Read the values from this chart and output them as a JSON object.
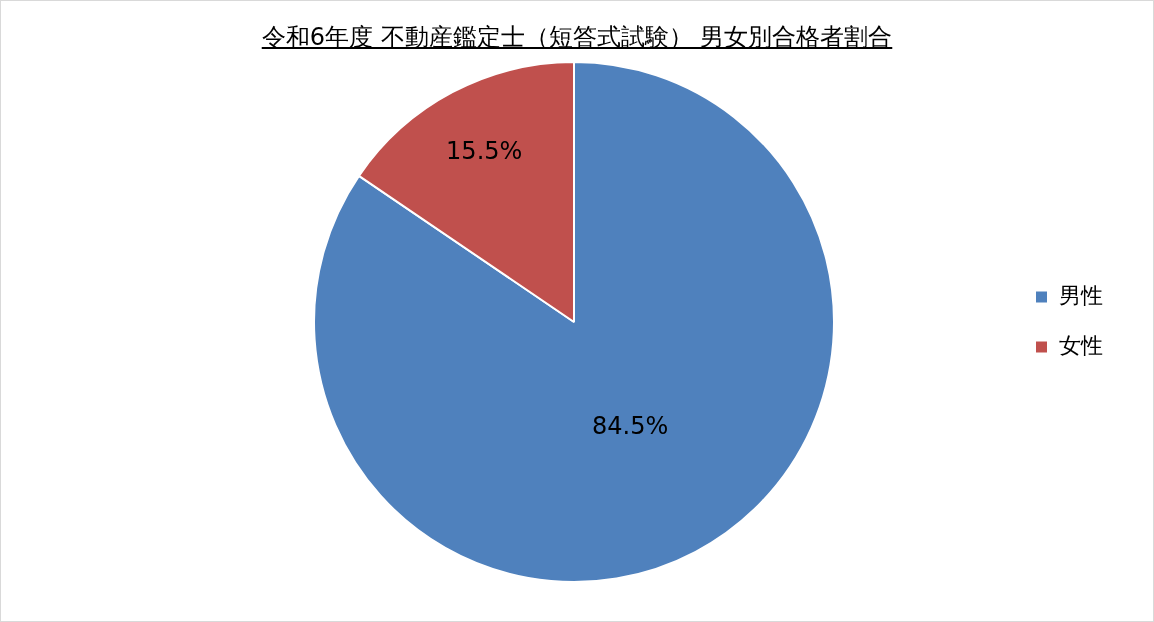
{
  "chart_data": {
    "type": "pie",
    "title": "令和6年度 不動産鑑定士（短答式試験） 男女別合格者割合",
    "categories": [
      "男性",
      "女性"
    ],
    "values": [
      84.5,
      15.5
    ],
    "colors": [
      "#4f81bd",
      "#c0504d"
    ],
    "value_labels": [
      "84.5%",
      "15.5%"
    ],
    "legend": "right"
  }
}
